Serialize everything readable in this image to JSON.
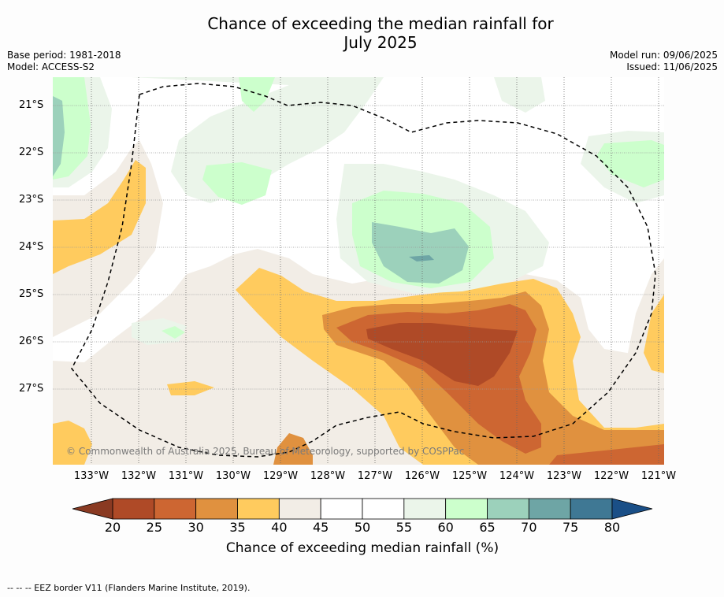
{
  "title": {
    "line1": "Chance of exceeding the median rainfall for",
    "line2": "July 2025"
  },
  "meta": {
    "base_period": "Base period: 1981-2018",
    "model": "Model: ACCESS-S2",
    "model_run": "Model run: 09/06/2025",
    "issued": "Issued: 11/06/2025"
  },
  "map": {
    "lat_labels": [
      "21°S",
      "22°S",
      "23°S",
      "24°S",
      "25°S",
      "26°S",
      "27°S"
    ],
    "lon_labels": [
      "133°W",
      "132°W",
      "131°W",
      "130°W",
      "129°W",
      "128°W",
      "127°W",
      "126°W",
      "125°W",
      "124°W",
      "123°W",
      "122°W",
      "121°W"
    ],
    "copyright": "© Commonwealth of Australia 2025, Bureau of Meteorology, supported by COSPPac"
  },
  "colorbar": {
    "ticks": [
      "20",
      "25",
      "30",
      "35",
      "40",
      "45",
      "50",
      "55",
      "60",
      "65",
      "70",
      "75",
      "80"
    ],
    "colors": [
      "#af4a27",
      "#cd6632",
      "#e0913f",
      "#ffcb5e",
      "#f2ede6",
      "#ffffff",
      "#ffffff",
      "#ebf5ea",
      "#ccffcc",
      "#9cd1bb",
      "#6ea5a5",
      "#3f7894"
    ],
    "under_color": "#8a3a22",
    "over_color": "#1a4f87",
    "label": "Chance of exceeding median rainfall (%)"
  },
  "footnote": "--  --  -- EEZ border V11 (Flanders Marine Institute, 2019)."
}
